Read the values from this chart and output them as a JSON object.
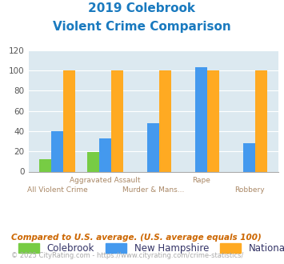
{
  "title_line1": "2019 Colebrook",
  "title_line2": "Violent Crime Comparison",
  "categories": [
    "All Violent Crime",
    "Aggravated Assault",
    "Murder & Mans...",
    "Rape",
    "Robbery"
  ],
  "cat_row": [
    1,
    0,
    1,
    0,
    1
  ],
  "series": {
    "Colebrook": [
      12,
      19,
      0,
      0,
      0
    ],
    "New Hampshire": [
      40,
      33,
      48,
      103,
      28
    ],
    "National": [
      100,
      100,
      100,
      100,
      100
    ]
  },
  "colors": {
    "Colebrook": "#77cc44",
    "New Hampshire": "#4499ee",
    "National": "#ffaa22"
  },
  "ylim": [
    0,
    120
  ],
  "yticks": [
    0,
    20,
    40,
    60,
    80,
    100,
    120
  ],
  "bg_color": "#dce9f0",
  "title_color": "#1a7abf",
  "label_color": "#aa8866",
  "footer_text": "Compared to U.S. average. (U.S. average equals 100)",
  "credit_text": "© 2025 CityRating.com - https://www.cityrating.com/crime-statistics/",
  "footer_color": "#cc6600",
  "credit_color": "#aaaaaa",
  "legend_text_color": "#333366"
}
